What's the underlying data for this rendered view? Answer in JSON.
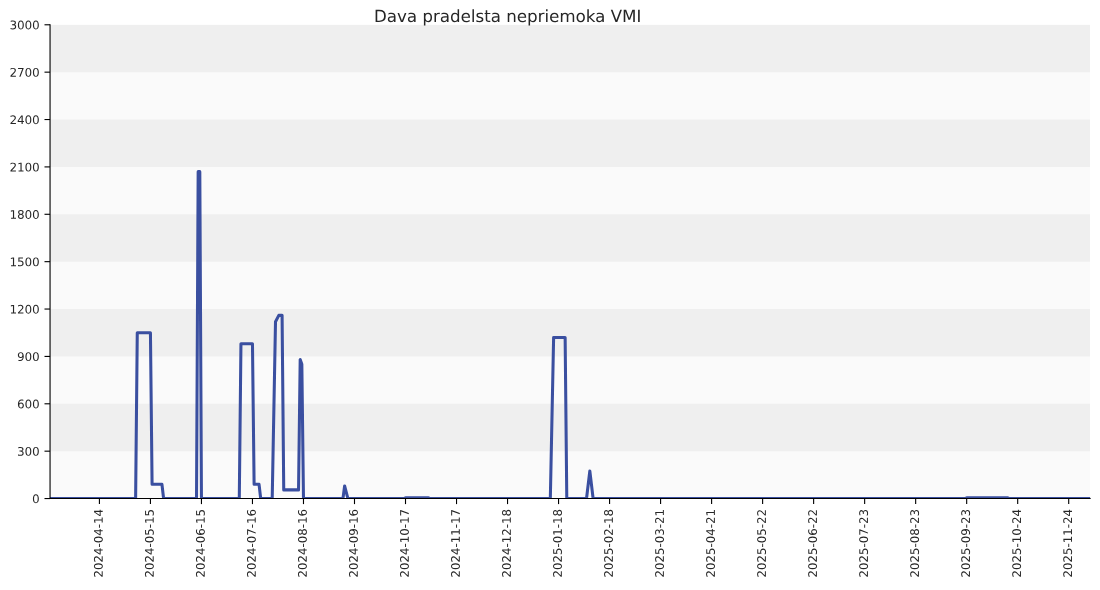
{
  "chart_data": {
    "type": "line",
    "title": "Dava pradelsta nepriemoka VMI",
    "x": [
      "2024-03-15",
      "2024-05-06",
      "2024-05-07",
      "2024-05-15",
      "2024-05-16",
      "2024-05-22",
      "2024-05-23",
      "2024-06-12",
      "2024-06-13",
      "2024-06-14",
      "2024-06-15",
      "2024-07-08",
      "2024-07-09",
      "2024-07-16",
      "2024-07-17",
      "2024-07-20",
      "2024-07-21",
      "2024-07-28",
      "2024-07-30",
      "2024-08-01",
      "2024-08-03",
      "2024-08-04",
      "2024-08-13",
      "2024-08-14",
      "2024-08-15",
      "2024-08-16",
      "2024-09-09",
      "2024-09-10",
      "2024-09-12",
      "2024-10-16",
      "2024-10-17",
      "2024-10-31",
      "2024-11-01",
      "2025-01-13",
      "2025-01-15",
      "2025-01-22",
      "2025-01-23",
      "2025-02-04",
      "2025-02-06",
      "2025-02-08",
      "2025-09-22",
      "2025-09-23",
      "2025-10-18",
      "2025-10-19",
      "2025-12-07"
    ],
    "series": [
      {
        "color": "#3a4fa0",
        "values": [
          0,
          0,
          1050,
          1050,
          90,
          90,
          0,
          0,
          2070,
          2070,
          0,
          0,
          980,
          980,
          90,
          90,
          0,
          0,
          1120,
          1160,
          1160,
          55,
          55,
          880,
          850,
          0,
          0,
          80,
          0,
          0,
          5,
          5,
          0,
          0,
          1020,
          1020,
          0,
          0,
          175,
          0,
          0,
          5,
          5,
          0,
          0
        ]
      }
    ],
    "xlim": [
      "2024-03-15",
      "2025-12-07"
    ],
    "xticks": [
      "2024-04-14",
      "2024-05-15",
      "2024-06-15",
      "2024-07-16",
      "2024-08-16",
      "2024-09-16",
      "2024-10-17",
      "2024-11-17",
      "2024-12-18",
      "2025-01-18",
      "2025-02-18",
      "2025-03-21",
      "2025-04-21",
      "2025-05-22",
      "2025-06-22",
      "2025-07-23",
      "2025-08-23",
      "2025-09-23",
      "2025-10-24",
      "2025-11-24"
    ],
    "ylim": [
      0,
      3000
    ],
    "yticks": [
      0,
      300,
      600,
      900,
      1200,
      1500,
      1800,
      2100,
      2400,
      2700,
      3000
    ],
    "bands": [
      {
        "axis": "y",
        "from": 300,
        "to": 600,
        "color": "#efefef"
      },
      {
        "axis": "y",
        "from": 900,
        "to": 1200,
        "color": "#efefef"
      },
      {
        "axis": "y",
        "from": 1500,
        "to": 1800,
        "color": "#efefef"
      },
      {
        "axis": "y",
        "from": 2100,
        "to": 2400,
        "color": "#efefef"
      },
      {
        "axis": "y",
        "from": 2700,
        "to": 3000,
        "color": "#efefef"
      }
    ],
    "legend": false,
    "marker": "none",
    "line_style": "solid"
  }
}
